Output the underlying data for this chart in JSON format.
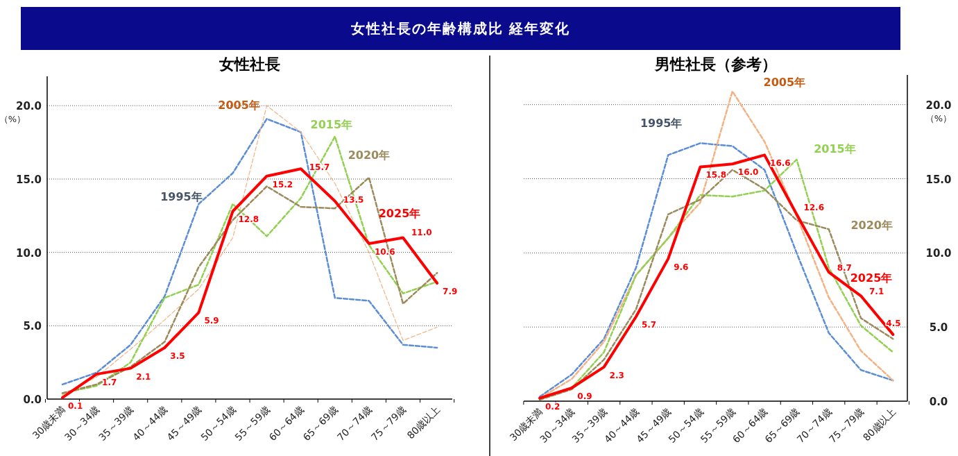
{
  "chart_data": [
    {
      "type": "line",
      "title": "女性社長",
      "ylabel": "（%）",
      "annotations": [
        "女性社長の年齢構成比 経年変化"
      ],
      "categories": [
        "30歳未満",
        "30～34歳",
        "35～39歳",
        "40～44歳",
        "45～49歳",
        "50～54歳",
        "55～59歳",
        "60～64歳",
        "65～69歳",
        "70～74歳",
        "75～79歳",
        "80歳以上"
      ],
      "ylim": [
        0,
        22
      ],
      "yticks": [
        {
          "value": 0,
          "label": "0.0"
        },
        {
          "value": 5,
          "label": "5.0"
        },
        {
          "value": 10,
          "label": "10.0"
        },
        {
          "value": 15,
          "label": "15.0"
        },
        {
          "value": 20,
          "label": "20.0"
        }
      ],
      "grid": "y",
      "legend": false,
      "marker": "none",
      "series": [
        {
          "name": "1995年",
          "color": "#5b8dd6",
          "line_style": "dashed",
          "values": [
            1.0,
            1.8,
            3.7,
            7.0,
            13.3,
            15.4,
            19.1,
            18.2,
            6.9,
            6.7,
            3.7,
            3.5
          ]
        },
        {
          "name": "2005年",
          "color": "#f4b183",
          "line_style": "dashed",
          "values": [
            0.3,
            1.5,
            3.4,
            5.4,
            7.5,
            11.0,
            20.0,
            18.2,
            14.7,
            10.0,
            4.0,
            4.9
          ]
        },
        {
          "name": "2015年",
          "color": "#92d050",
          "line_style": "dashed",
          "values": [
            0.4,
            0.9,
            2.5,
            6.9,
            7.8,
            13.3,
            11.1,
            13.7,
            17.9,
            10.5,
            7.2,
            8.0
          ]
        },
        {
          "name": "2020年",
          "color": "#9c8a5a",
          "line_style": "dashed",
          "values": [
            0.4,
            1.0,
            2.2,
            3.9,
            9.0,
            12.2,
            14.5,
            13.1,
            13.0,
            15.1,
            6.5,
            8.6
          ]
        },
        {
          "name": "2025年",
          "color": "#ff0000",
          "line_style": "solid",
          "values": [
            0.1,
            1.7,
            2.1,
            3.5,
            5.9,
            12.8,
            15.2,
            15.7,
            13.5,
            10.6,
            11.0,
            7.9
          ],
          "value_labels": [
            "0.1",
            "1.7",
            "2.1",
            "3.5",
            "5.9",
            "12.8",
            "15.2",
            "15.7",
            "13.5",
            "10.6",
            "11.0",
            "7.9"
          ]
        }
      ]
    },
    {
      "type": "line",
      "title": "男性社長（参考）",
      "ylabel": "（%）",
      "categories": [
        "30歳未満",
        "30～34歳",
        "35～39歳",
        "40～44歳",
        "45～49歳",
        "50～54歳",
        "55～59歳",
        "60～64歳",
        "65～69歳",
        "70～74歳",
        "75～79歳",
        "80歳以上"
      ],
      "ylim": [
        0,
        22
      ],
      "yticks": [
        {
          "value": 0,
          "label": "0.0"
        },
        {
          "value": 5,
          "label": "5.0"
        },
        {
          "value": 10,
          "label": "10.0"
        },
        {
          "value": 15,
          "label": "15.0"
        },
        {
          "value": 20,
          "label": "20.0"
        }
      ],
      "grid": "y",
      "legend": false,
      "marker": "none",
      "series": [
        {
          "name": "1995年",
          "color": "#5b8dd6",
          "line_style": "dashed",
          "values": [
            0.3,
            1.8,
            4.2,
            9.0,
            16.6,
            17.4,
            17.2,
            15.6,
            10.0,
            4.6,
            2.1,
            1.4
          ]
        },
        {
          "name": "2005年",
          "color": "#f4b183",
          "line_style": "dashed",
          "values": [
            0.2,
            1.5,
            4.0,
            8.5,
            11.0,
            13.4,
            20.9,
            17.5,
            12.5,
            7.0,
            3.4,
            1.4
          ]
        },
        {
          "name": "2015年",
          "color": "#92d050",
          "line_style": "dashed",
          "values": [
            0.1,
            0.9,
            3.3,
            8.5,
            11.0,
            13.9,
            13.8,
            14.2,
            16.3,
            9.0,
            5.1,
            3.3
          ]
        },
        {
          "name": "2020年",
          "color": "#9c8a5a",
          "line_style": "dashed",
          "values": [
            0.1,
            0.8,
            2.8,
            6.2,
            12.6,
            13.6,
            15.6,
            14.3,
            12.2,
            11.6,
            5.6,
            4.2
          ]
        },
        {
          "name": "2025年",
          "color": "#ff0000",
          "line_style": "solid",
          "values": [
            0.2,
            0.9,
            2.3,
            5.7,
            9.6,
            15.8,
            16.0,
            16.6,
            12.6,
            8.7,
            7.1,
            4.5
          ],
          "value_labels": [
            "0.2",
            "0.9",
            "2.3",
            "5.7",
            "9.6",
            "15.8",
            "16.0",
            "16.6",
            "12.6",
            "8.7",
            "7.1",
            "4.5"
          ]
        }
      ]
    }
  ]
}
